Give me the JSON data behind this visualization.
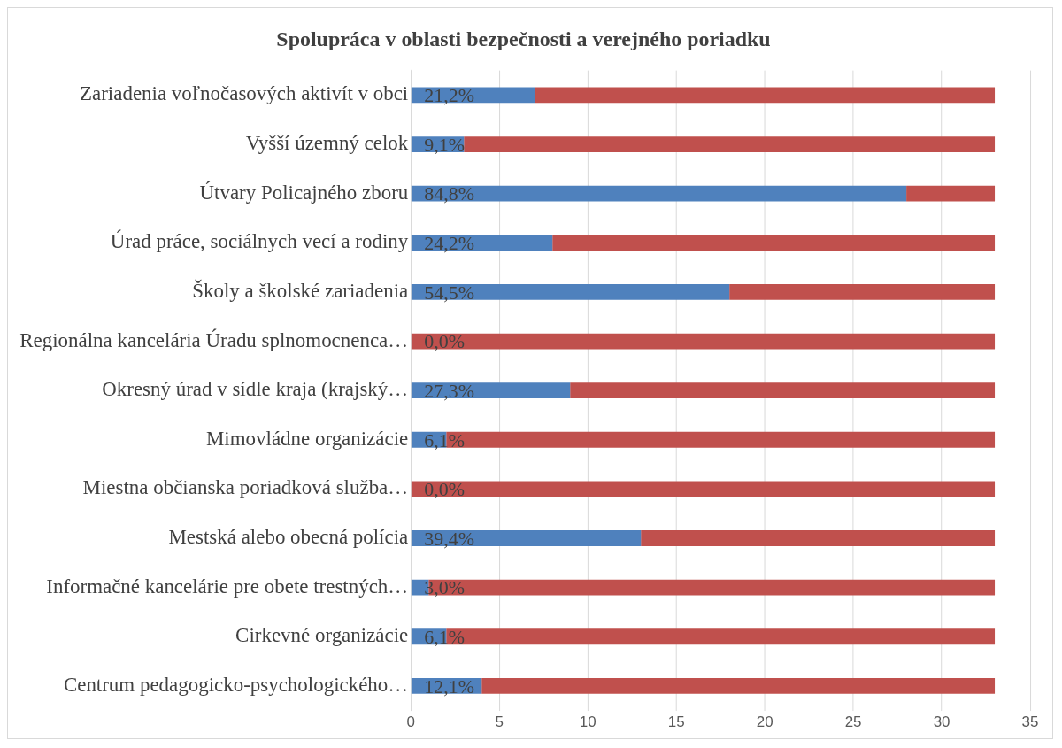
{
  "chart_data": {
    "type": "bar",
    "orientation": "horizontal",
    "stacked": true,
    "title": "Spolupráca v oblasti bezpečnosti a verejného poriadku",
    "categories": [
      "Zariadenia voľnočasových aktivít v obci",
      "Vyšší územný celok",
      "Útvary Policajného zboru",
      "Úrad práce, sociálnych vecí a rodiny",
      "Školy a školské zariadenia",
      "Regionálna kancelária Úradu splnomocnenca…",
      "Okresný úrad v sídle kraja (krajský…",
      "Mimovládne organizácie",
      "Miestna občianska poriadková služba…",
      "Mestská alebo obecná polícia",
      "Informačné kancelárie pre obete trestných…",
      "Cirkevné organizácie",
      "Centrum pedagogicko-psychologického…"
    ],
    "series": [
      {
        "color": "#4f81bd",
        "values": [
          7,
          3,
          28,
          8,
          18,
          0,
          9,
          2,
          0,
          13,
          1,
          2,
          4
        ]
      },
      {
        "color": "#c0504d",
        "values": [
          26,
          30,
          5,
          25,
          15,
          33,
          24,
          31,
          33,
          20,
          32,
          31,
          29
        ]
      }
    ],
    "annotations": [
      "21,2%",
      "9,1%",
      "84,8%",
      "24,2%",
      "54,5%",
      "0,0%",
      "27,3%",
      "6,1%",
      "0,0%",
      "39,4%",
      "3,0%",
      "6,1%",
      "12,1%"
    ],
    "xlim": [
      0,
      35
    ],
    "xticks": [
      0,
      5,
      10,
      15,
      20,
      25,
      30,
      35
    ],
    "grid": "x"
  }
}
